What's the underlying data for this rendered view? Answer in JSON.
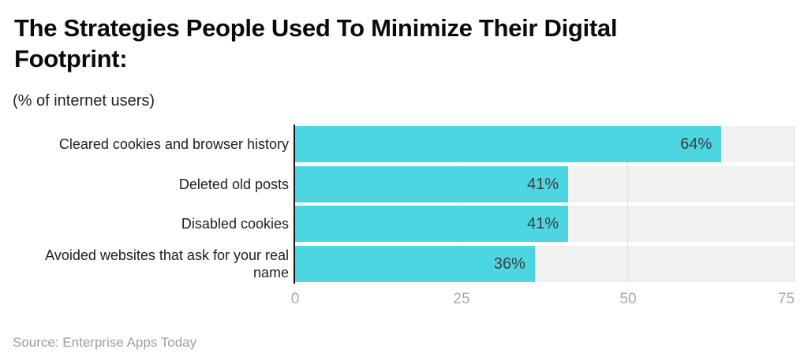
{
  "chart_data": {
    "type": "bar",
    "orientation": "horizontal",
    "title": "The Strategies People Used To Minimize Their Digital Footprint:",
    "subtitle": "(% of internet users)",
    "categories": [
      "Cleared cookies and browser history",
      "Deleted old posts",
      "Disabled cookies",
      "Avoided websites that ask for your real name"
    ],
    "values": [
      64,
      41,
      41,
      36
    ],
    "value_labels": [
      "64%",
      "41%",
      "41%",
      "36%"
    ],
    "xlim": [
      0,
      75
    ],
    "xticks": [
      0,
      25,
      50,
      75
    ],
    "xtick_labels": [
      "0",
      "25",
      "50",
      "75"
    ],
    "grid": true,
    "legend": false,
    "colors": {
      "bar": "#4dd6e2",
      "track": "#f1f1f1",
      "gridline": "#dedede",
      "axis_line": "#111111",
      "tick_label": "#ababab",
      "value_label": "#3c3c3c",
      "category_label": "#1d1d1d",
      "title": "#0a0a0a",
      "source": "#9e9e9e"
    }
  },
  "source_note": "Source: Enterprise Apps Today"
}
